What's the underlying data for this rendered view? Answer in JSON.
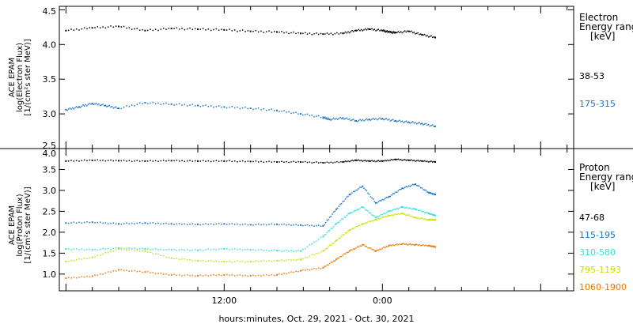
{
  "xlabel": "hours:minutes, Oct. 29, 2021 - Oct. 30, 2021",
  "x_ticks": [
    {
      "label": "12:00",
      "hour": 12
    },
    {
      "label": "0:00",
      "hour": 24
    }
  ],
  "chart_data": [
    {
      "type": "scatter",
      "panel": "electron",
      "ylabel": [
        "ACE EPAM",
        "log(Electron Flux)",
        "[1/(cm²s ster MeV)]"
      ],
      "ylim": [
        2.5,
        4.55
      ],
      "yticks": [
        2.5,
        3.0,
        3.5,
        4.0,
        4.5
      ],
      "ytick_labels": [
        "2.5",
        "3.0",
        "3.5",
        "4.0",
        "4.5"
      ],
      "x_unit": "hours since Oct. 29, 2021 00:00",
      "xlim": [
        -0.5,
        38.5
      ],
      "legend_title": [
        "Electron",
        "Energy ranges",
        "[keV]"
      ],
      "series": [
        {
          "name": "38-53",
          "color": "#000000",
          "x": [
            0,
            2,
            4,
            6,
            8,
            10,
            12,
            14,
            16,
            17.8,
            19.5,
            21,
            22,
            23,
            24,
            24.5,
            25,
            26,
            27,
            28
          ],
          "y": [
            4.2,
            4.24,
            4.26,
            4.2,
            4.23,
            4.22,
            4.21,
            4.19,
            4.18,
            4.16,
            4.15,
            4.16,
            4.2,
            4.22,
            4.2,
            4.18,
            4.17,
            4.19,
            4.14,
            4.1
          ]
        },
        {
          "name": "175-315",
          "color": "#1a75c9",
          "x": [
            0,
            1,
            2,
            3,
            4,
            6,
            8,
            10,
            12,
            14,
            16,
            17.8,
            19.5,
            20,
            21,
            22,
            23,
            24,
            25,
            26,
            27,
            28
          ],
          "y": [
            3.06,
            3.1,
            3.15,
            3.12,
            3.08,
            3.16,
            3.14,
            3.12,
            3.1,
            3.08,
            3.05,
            3.0,
            2.95,
            2.92,
            2.94,
            2.9,
            2.92,
            2.93,
            2.9,
            2.88,
            2.86,
            2.82
          ]
        }
      ]
    },
    {
      "type": "scatter",
      "panel": "proton",
      "ylabel": [
        "ACE EPAM",
        "log(Proton Flux)",
        "[1/(cm²s ster MeV)]"
      ],
      "ylim": [
        0.6,
        4.0
      ],
      "yticks": [
        1.0,
        1.5,
        2.0,
        2.5,
        3.0,
        3.5,
        4.0
      ],
      "ytick_labels": [
        "1.0",
        "1.5",
        "2.0",
        "2.5",
        "3.0",
        "3.5",
        "4.0"
      ],
      "x_unit": "hours since Oct. 29, 2021 00:00",
      "xlim": [
        -0.5,
        38.5
      ],
      "legend_title": [
        "Proton",
        "Energy ranges",
        "[keV]"
      ],
      "series": [
        {
          "name": "47-68",
          "color": "#000000",
          "x": [
            0,
            2,
            4,
            6,
            8,
            10,
            12,
            14,
            16,
            17.8,
            19.5,
            21,
            22,
            23,
            24,
            25,
            26,
            27,
            28
          ],
          "y": [
            3.7,
            3.72,
            3.71,
            3.7,
            3.71,
            3.7,
            3.7,
            3.69,
            3.68,
            3.68,
            3.66,
            3.68,
            3.72,
            3.7,
            3.7,
            3.74,
            3.72,
            3.7,
            3.68
          ]
        },
        {
          "name": "115-195",
          "color": "#1a75c9",
          "x": [
            0,
            2,
            4,
            6,
            8,
            10,
            12,
            14,
            16,
            17.8,
            19.5,
            20.5,
            21.5,
            22.5,
            23.5,
            24.5,
            25.5,
            26.5,
            27.5,
            28
          ],
          "y": [
            2.22,
            2.24,
            2.2,
            2.22,
            2.2,
            2.19,
            2.2,
            2.18,
            2.19,
            2.17,
            2.15,
            2.55,
            2.9,
            3.1,
            2.7,
            2.85,
            3.05,
            3.15,
            2.95,
            2.9
          ]
        },
        {
          "name": "310-580",
          "color": "#33e0e0",
          "x": [
            0,
            2,
            4,
            6,
            8,
            10,
            12,
            14,
            16,
            17.8,
            19.5,
            20.5,
            21.5,
            22.5,
            23.5,
            24.5,
            25.5,
            26.5,
            27.5,
            28
          ],
          "y": [
            1.6,
            1.58,
            1.62,
            1.6,
            1.58,
            1.57,
            1.6,
            1.58,
            1.56,
            1.55,
            1.9,
            2.2,
            2.45,
            2.6,
            2.35,
            2.5,
            2.6,
            2.55,
            2.45,
            2.4
          ]
        },
        {
          "name": "795-1193",
          "color": "#c8e000",
          "x": [
            0,
            2,
            4,
            6,
            8,
            10,
            12,
            14,
            16,
            17.8,
            19.5,
            20.5,
            21.5,
            22.5,
            23.5,
            24.5,
            25.5,
            26.5,
            27.5,
            28
          ],
          "y": [
            1.3,
            1.4,
            1.6,
            1.55,
            1.38,
            1.32,
            1.3,
            1.3,
            1.32,
            1.35,
            1.55,
            1.8,
            2.05,
            2.2,
            2.3,
            2.4,
            2.45,
            2.35,
            2.3,
            2.3
          ]
        },
        {
          "name": "1060-1900",
          "color": "#f07800",
          "x": [
            0,
            2,
            4,
            6,
            8,
            10,
            12,
            14,
            16,
            17.8,
            19.5,
            20.5,
            21.5,
            22.5,
            23.5,
            24.5,
            25.5,
            26.5,
            27.5,
            28
          ],
          "y": [
            0.9,
            0.95,
            1.1,
            1.05,
            0.98,
            0.96,
            0.98,
            0.96,
            0.98,
            1.08,
            1.15,
            1.35,
            1.55,
            1.7,
            1.55,
            1.68,
            1.72,
            1.7,
            1.68,
            1.65
          ]
        }
      ]
    }
  ]
}
